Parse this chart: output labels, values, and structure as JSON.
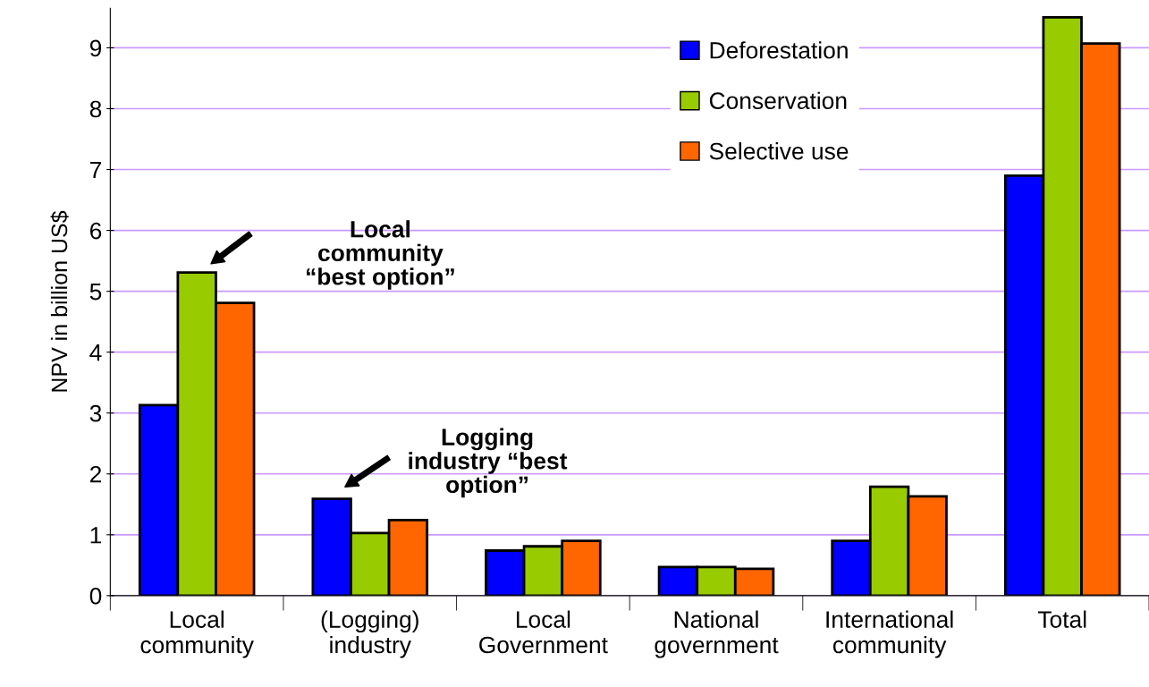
{
  "chart_data": {
    "type": "bar",
    "ylabel": "NPV in billion US$",
    "categories": [
      "Local\ncommunity",
      "(Logging)\nindustry",
      "Local\nGovernment",
      "National\ngovernment",
      "International\ncommunity",
      "Total"
    ],
    "series": [
      {
        "name": "Deforestation",
        "color": "#0000ff",
        "values": [
          3.13,
          1.59,
          0.74,
          0.47,
          0.9,
          6.9
        ]
      },
      {
        "name": "Conservation",
        "color": "#99cc00",
        "values": [
          5.31,
          1.03,
          0.81,
          0.47,
          1.79,
          9.5
        ]
      },
      {
        "name": "Selective use",
        "color": "#ff6600",
        "values": [
          4.81,
          1.24,
          0.9,
          0.44,
          1.63,
          9.07
        ]
      }
    ],
    "ylim": [
      0,
      9.65
    ],
    "yticks": [
      0,
      1,
      2,
      3,
      4,
      5,
      6,
      7,
      8,
      9
    ],
    "grid": "y",
    "legend": "top",
    "annotations": [
      "Local\ncommunity\n“best option”",
      "Logging\nindustry “best\noption”"
    ]
  }
}
